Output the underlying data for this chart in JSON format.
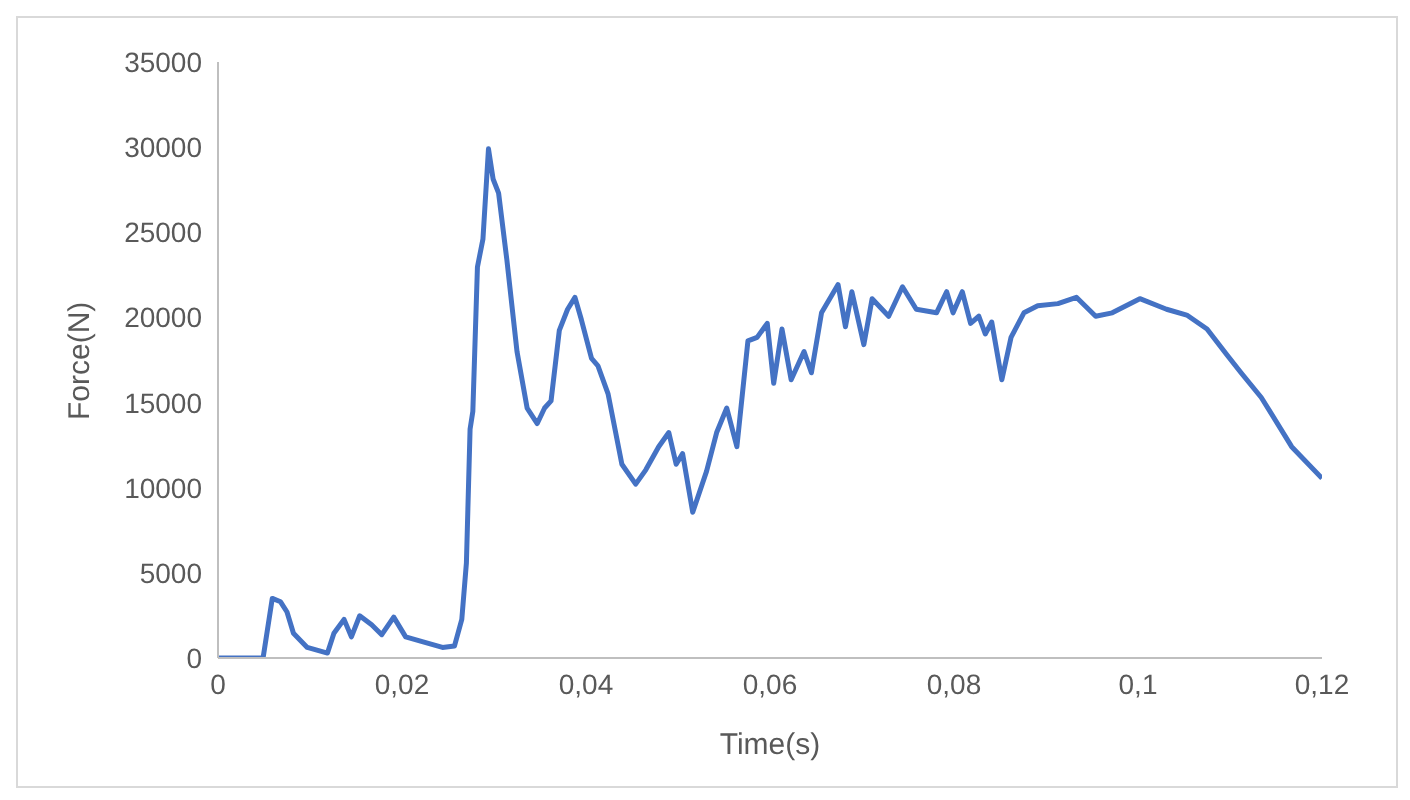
{
  "chart_data": {
    "type": "line",
    "xlabel": "Time(s)",
    "ylabel": "Force(N)",
    "xlim": [
      0,
      0.12
    ],
    "ylim": [
      0,
      35000
    ],
    "xticks": [
      0,
      {
        "value": 0.02,
        "label": "0,02"
      },
      {
        "value": 0.04,
        "label": "0,04"
      },
      {
        "value": 0.06,
        "label": "0,06"
      },
      {
        "value": 0.08,
        "label": "0,08"
      },
      {
        "value": 0.1,
        "label": "0,1"
      },
      {
        "value": 0.12,
        "label": "0,12"
      }
    ],
    "yticks": [
      0,
      5000,
      10000,
      15000,
      20000,
      25000,
      30000,
      35000
    ],
    "grid": false,
    "legend": false,
    "marker": "none",
    "line_style": "solid",
    "series": [
      {
        "color": "#4472c4",
        "x": [
          0,
          0.0049,
          0.0059,
          0.0068,
          0.0075,
          0.0082,
          0.0097,
          0.0119,
          0.0126,
          0.0137,
          0.0145,
          0.0154,
          0.0167,
          0.0178,
          0.0191,
          0.0204,
          0.0222,
          0.0244,
          0.0257,
          0.0265,
          0.027,
          0.0274,
          0.0277,
          0.0282,
          0.0288,
          0.0294,
          0.0299,
          0.0305,
          0.0314,
          0.0325,
          0.0336,
          0.0347,
          0.0355,
          0.0362,
          0.0371,
          0.038,
          0.0388,
          0.0395,
          0.0406,
          0.0413,
          0.0424,
          0.0439,
          0.0454,
          0.0465,
          0.0479,
          0.049,
          0.0498,
          0.0505,
          0.0516,
          0.0531,
          0.0542,
          0.0553,
          0.0564,
          0.0576,
          0.0586,
          0.0597,
          0.0604,
          0.0613,
          0.0623,
          0.0637,
          0.0645,
          0.0656,
          0.0674,
          0.0682,
          0.0689,
          0.0702,
          0.0711,
          0.0729,
          0.0744,
          0.0759,
          0.0781,
          0.0792,
          0.0799,
          0.0809,
          0.0818,
          0.0827,
          0.0834,
          0.0841,
          0.0852,
          0.0862,
          0.0876,
          0.0891,
          0.0913,
          0.0933,
          0.0954,
          0.0972,
          0.1002,
          0.1031,
          0.1053,
          0.1075,
          0.1097,
          0.1112,
          0.1134,
          0.1167,
          0.12
        ],
        "values": [
          0,
          0,
          3500,
          3300,
          2700,
          1450,
          620,
          290,
          1450,
          2270,
          1240,
          2480,
          1950,
          1370,
          2400,
          1240,
          960,
          620,
          700,
          2270,
          5580,
          13440,
          14480,
          22960,
          24610,
          29900,
          28130,
          27300,
          23370,
          18000,
          14680,
          13770,
          14680,
          15100,
          19240,
          20480,
          21180,
          19860,
          17590,
          17160,
          15510,
          11380,
          10210,
          11050,
          12410,
          13240,
          11380,
          12000,
          8560,
          10960,
          13240,
          14680,
          12410,
          18620,
          18830,
          19650,
          16130,
          19320,
          16340,
          18000,
          16750,
          20270,
          21930,
          19450,
          21510,
          18400,
          21100,
          20070,
          21800,
          20480,
          20270,
          21510,
          20270,
          21510,
          19650,
          20070,
          19030,
          19730,
          16340,
          18830,
          20270,
          20690,
          20810,
          21180,
          20070,
          20270,
          21100,
          20480,
          20140,
          19320,
          17780,
          16750,
          15300,
          12410,
          10550
        ]
      }
    ]
  }
}
